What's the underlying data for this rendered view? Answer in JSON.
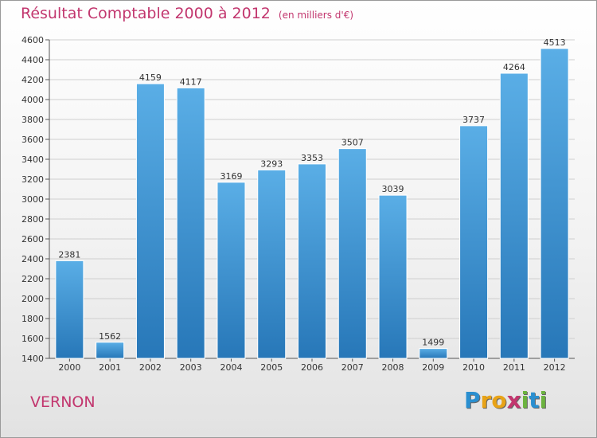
{
  "header": {
    "title": "Résultat Comptable 2000 à 2012",
    "subtitle": "(en milliers d'€)"
  },
  "footer": {
    "city": "VERNON",
    "brand": "Proxiti",
    "brand_letters": [
      {
        "ch": "P",
        "color": "#2a8fd0"
      },
      {
        "ch": "r",
        "color": "#e8a317"
      },
      {
        "ch": "o",
        "color": "#e8a317"
      },
      {
        "ch": "x",
        "color": "#c2366e"
      },
      {
        "ch": "i",
        "color": "#6cb33f"
      },
      {
        "ch": "t",
        "color": "#2a8fd0"
      },
      {
        "ch": "i",
        "color": "#6cb33f"
      }
    ]
  },
  "colors": {
    "bar_top": "#5aaee6",
    "bar_bottom": "#2777b8",
    "grid": "#cfcfcf",
    "accent": "#c2366e"
  },
  "chart_data": {
    "type": "bar",
    "title": "Résultat Comptable 2000 à 2012",
    "xlabel": "",
    "ylabel": "",
    "categories": [
      "2000",
      "2001",
      "2002",
      "2003",
      "2004",
      "2005",
      "2006",
      "2007",
      "2008",
      "2009",
      "2010",
      "2011",
      "2012"
    ],
    "values": [
      2381,
      1562,
      4159,
      4117,
      3169,
      3293,
      3353,
      3507,
      3039,
      1499,
      3737,
      4264,
      4513
    ],
    "ylim": [
      1400,
      4600
    ],
    "yticks": [
      1400,
      1600,
      1800,
      2000,
      2200,
      2400,
      2600,
      2800,
      3000,
      3200,
      3400,
      3600,
      3800,
      4000,
      4200,
      4400,
      4600
    ],
    "grid": true,
    "legend": "none"
  }
}
